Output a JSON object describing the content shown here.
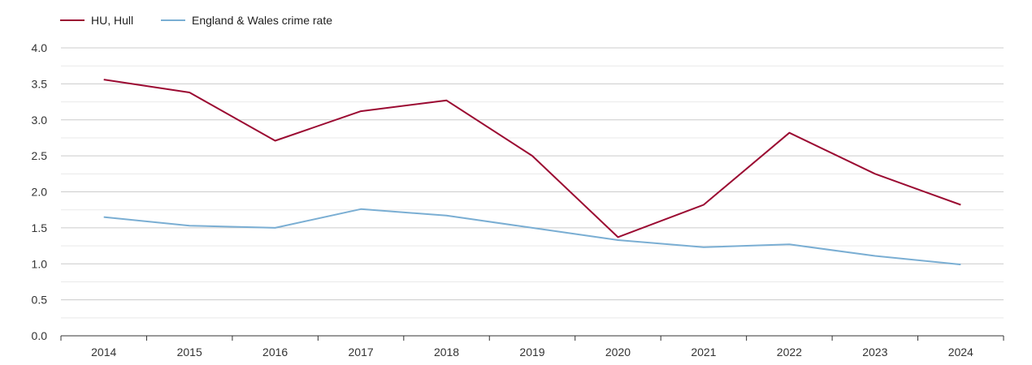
{
  "chart_data": {
    "type": "line",
    "title": "",
    "xlabel": "",
    "ylabel": "",
    "ylim": [
      0,
      4
    ],
    "yticks": [
      "0.0",
      "0.5",
      "1.0",
      "1.5",
      "2.0",
      "2.5",
      "3.0",
      "3.5",
      "4.0"
    ],
    "x": [
      "2014",
      "2015",
      "2016",
      "2017",
      "2018",
      "2019",
      "2020",
      "2021",
      "2022",
      "2023",
      "2024"
    ],
    "grid": true,
    "legend_position": "top-left",
    "series": [
      {
        "name": "HU, Hull",
        "color": "#9b0a32",
        "values": [
          3.56,
          3.38,
          2.71,
          3.12,
          3.27,
          2.5,
          1.37,
          1.82,
          2.82,
          2.25,
          1.82
        ]
      },
      {
        "name": "England & Wales crime rate",
        "color": "#7aaed3",
        "values": [
          1.65,
          1.53,
          1.5,
          1.76,
          1.67,
          1.5,
          1.33,
          1.23,
          1.27,
          1.11,
          0.99
        ]
      }
    ]
  }
}
